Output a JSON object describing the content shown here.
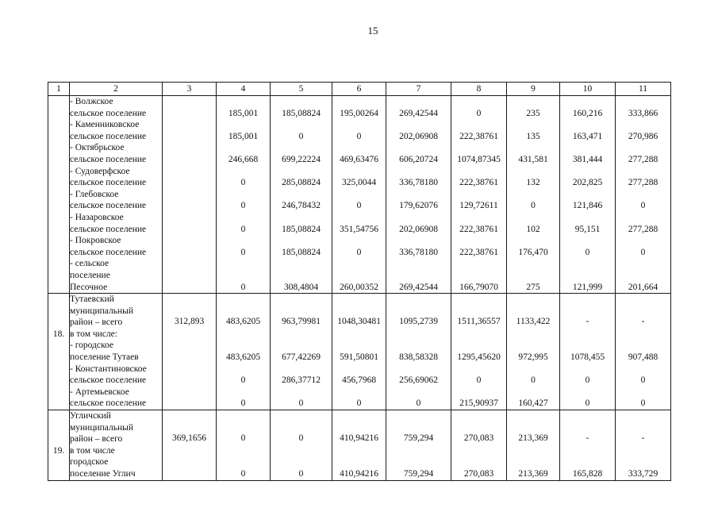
{
  "page": {
    "number": "15"
  },
  "table": {
    "header": [
      "1",
      "2",
      "3",
      "4",
      "5",
      "6",
      "7",
      "8",
      "9",
      "10",
      "11"
    ],
    "blocks": [
      {
        "rows": [
          {
            "type": "sub",
            "num": "",
            "lines": [
              "- Волжское",
              "сельское поселение"
            ],
            "values": [
              "",
              "185,001",
              "185,08824",
              "195,00264",
              "269,42544",
              "0",
              "235",
              "160,216",
              "333,866"
            ]
          },
          {
            "type": "sub",
            "num": "",
            "lines": [
              "- Каменниковское",
              "сельское поселение"
            ],
            "values": [
              "",
              "185,001",
              "0",
              "0",
              "202,06908",
              "222,38761",
              "135",
              "163,471",
              "270,986"
            ]
          },
          {
            "type": "sub",
            "num": "",
            "lines": [
              "- Октябрьское",
              "сельское поселение"
            ],
            "values": [
              "",
              "246,668",
              "699,22224",
              "469,63476",
              "606,20724",
              "1074,87345",
              "431,581",
              "381,444",
              "277,288"
            ]
          },
          {
            "type": "sub",
            "num": "",
            "lines": [
              "- Судоверфское",
              "сельское поселение"
            ],
            "values": [
              "",
              "0",
              "285,08824",
              "325,0044",
              "336,78180",
              "222,38761",
              "132",
              "202,825",
              "277,288"
            ]
          },
          {
            "type": "sub",
            "num": "",
            "lines": [
              "- Глебовское",
              "сельское поселение"
            ],
            "values": [
              "",
              "0",
              "246,78432",
              "0",
              "179,62076",
              "129,72611",
              "0",
              "121,846",
              "0"
            ]
          },
          {
            "type": "sub",
            "num": "",
            "lines": [
              "- Назаровское",
              "сельское поселение"
            ],
            "values": [
              "",
              "0",
              "185,08824",
              "351,54756",
              "202,06908",
              "222,38761",
              "102",
              "95,151",
              "277,288"
            ]
          },
          {
            "type": "sub",
            "num": "",
            "lines": [
              "- Покровское",
              "сельское поселение"
            ],
            "values": [
              "",
              "0",
              "185,08824",
              "0",
              "336,78180",
              "222,38761",
              "176,470",
              "0",
              "0"
            ]
          },
          {
            "type": "sub",
            "num": "",
            "lines": [
              "- сельское",
              "поселение",
              "Песочное"
            ],
            "values": [
              "",
              "0",
              "308,4804",
              "260,00352",
              "269,42544",
              "166,79070",
              "275",
              "121,999",
              "201,664"
            ]
          }
        ]
      },
      {
        "rows": [
          {
            "type": "total",
            "num": "18.",
            "lines": [
              "Тутаевский",
              "муниципальный",
              "район – всего",
              "в том числе:"
            ],
            "values": [
              "312,893",
              "483,6205",
              "963,79981",
              "1048,30481",
              "1095,2739",
              "1511,36557",
              "1133,422",
              "-",
              "-"
            ]
          },
          {
            "type": "sub",
            "num": "",
            "lines": [
              "- городское",
              "поселение Тутаев"
            ],
            "values": [
              "",
              "483,6205",
              "677,42269",
              "591,50801",
              "838,58328",
              "1295,45620",
              "972,995",
              "1078,455",
              "907,488"
            ]
          },
          {
            "type": "sub",
            "num": "",
            "lines": [
              "- Константиновское",
              "сельское поселение"
            ],
            "values": [
              "",
              "0",
              "286,37712",
              "456,7968",
              "256,69062",
              "0",
              "0",
              "0",
              "0"
            ]
          },
          {
            "type": "sub",
            "num": "",
            "lines": [
              "- Артемьевское",
              "сельское поселение"
            ],
            "values": [
              "",
              "0",
              "0",
              "0",
              "0",
              "215,90937",
              "160,427",
              "0",
              "0"
            ]
          }
        ]
      },
      {
        "rows": [
          {
            "type": "total",
            "num": "19.",
            "lines": [
              "Угличский",
              "муниципальный",
              "район – всего",
              "в том числе"
            ],
            "values": [
              "369,1656",
              "0",
              "0",
              "410,94216",
              "759,294",
              "270,083",
              "213,369",
              "-",
              "-"
            ]
          },
          {
            "type": "sub",
            "num": "",
            "lines": [
              "городское",
              "поселение Углич"
            ],
            "values": [
              "",
              "0",
              "0",
              "410,94216",
              "759,294",
              "270,083",
              "213,369",
              "165,828",
              "333,729"
            ]
          }
        ]
      }
    ]
  }
}
